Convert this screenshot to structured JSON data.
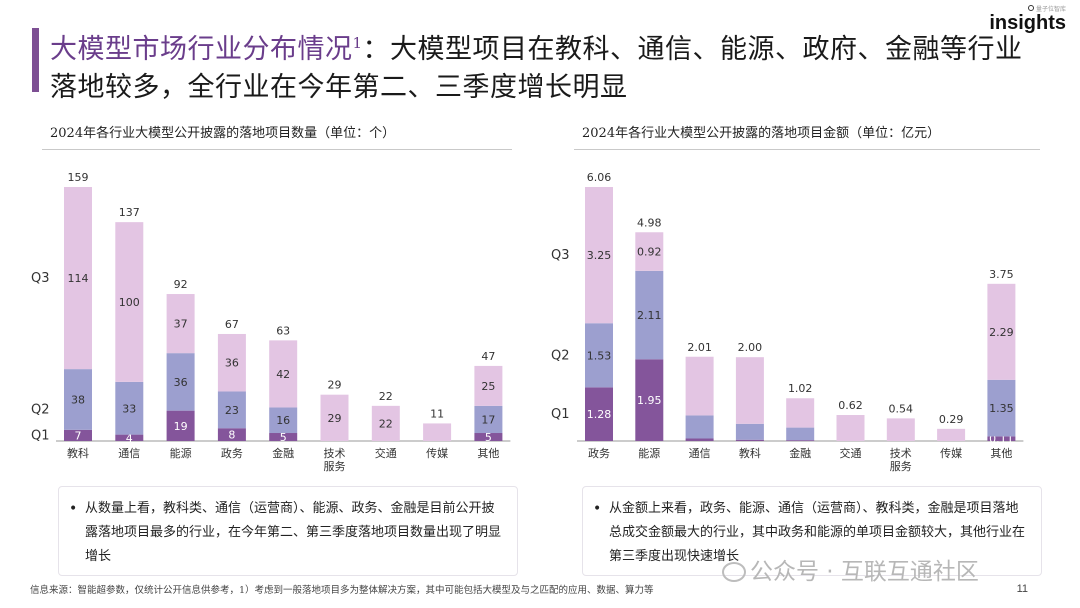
{
  "header": {
    "title_highlight": "大模型市场行业分布情况",
    "title_sup": "1",
    "title_rest": "：大模型项目在教科、通信、能源、政府、金融等行业落地较多，全行业在今年第二、三季度增长明显"
  },
  "logo": {
    "small_text": "量子位智库",
    "main_text": "insights"
  },
  "colors": {
    "q1": "#84559b",
    "q2": "#9c9fcf",
    "q3": "#e3c5e3",
    "accent": "#6a3d8b"
  },
  "left_chart": {
    "heading": "2024年各行业大模型公开披露的落地项目数量（单位：个）"
  },
  "right_chart": {
    "heading": "2024年各行业大模型公开披露的落地项目金额（单位：亿元）"
  },
  "chart_data": [
    {
      "type": "bar",
      "stacked": true,
      "title": "2024年各行业大模型公开披露的落地项目数量（单位：个）",
      "categories": [
        "教科",
        "通信",
        "能源",
        "政务",
        "金融",
        "技术服务",
        "交通",
        "传媒",
        "其他"
      ],
      "totals": [
        "159",
        "137",
        "92",
        "67",
        "63",
        "29",
        "22",
        "11",
        "47"
      ],
      "series": [
        {
          "name": "Q1",
          "values": [
            7,
            4,
            19,
            8,
            5,
            0,
            0,
            0,
            5
          ],
          "labels": [
            "7",
            "4",
            "19",
            "8",
            "5",
            "",
            "",
            "",
            "5"
          ]
        },
        {
          "name": "Q2",
          "values": [
            38,
            33,
            36,
            23,
            16,
            0,
            0,
            0,
            17
          ],
          "labels": [
            "38",
            "33",
            "36",
            "23",
            "16",
            "",
            "",
            "",
            "17"
          ]
        },
        {
          "name": "Q3",
          "values": [
            114,
            100,
            37,
            36,
            42,
            29,
            22,
            11,
            25
          ],
          "labels": [
            "114",
            "100",
            "37",
            "36",
            "42",
            "29",
            "22",
            "",
            "25"
          ]
        }
      ],
      "ylim": [
        0,
        159
      ]
    },
    {
      "type": "bar",
      "stacked": true,
      "title": "2024年各行业大模型公开披露的落地项目金额（单位：亿元）",
      "categories": [
        "政务",
        "能源",
        "通信",
        "教科",
        "金融",
        "交通",
        "技术服务",
        "传媒",
        "其他"
      ],
      "totals": [
        "6.06",
        "4.98",
        "2.01",
        "2.00",
        "1.02",
        "0.62",
        "0.54",
        "0.29",
        "3.75"
      ],
      "series": [
        {
          "name": "Q1",
          "values": [
            1.28,
            1.95,
            0.06,
            0.03,
            0.02,
            0,
            0,
            0,
            0.11
          ],
          "labels": [
            "1.28",
            "1.95",
            "",
            "",
            "",
            "",
            "",
            "",
            "0.11"
          ]
        },
        {
          "name": "Q2",
          "values": [
            1.53,
            2.11,
            0.55,
            0.38,
            0.3,
            0,
            0,
            0,
            1.35
          ],
          "labels": [
            "1.53",
            "2.11",
            "",
            "",
            "",
            "",
            "",
            "",
            "1.35"
          ]
        },
        {
          "name": "Q3",
          "values": [
            3.25,
            0.92,
            1.4,
            1.59,
            0.7,
            0.62,
            0.54,
            0.29,
            2.29
          ],
          "labels": [
            "3.25",
            "0.92",
            "",
            "",
            "",
            "",
            "",
            "",
            "2.29"
          ]
        }
      ],
      "ylim": [
        0,
        6.06
      ]
    }
  ],
  "notes": {
    "left": "从数量上看，教科类、通信（运营商）、能源、政务、金融是目前公开披露落地项目最多的行业，在今年第二、第三季度落地项目数量出现了明显增长",
    "right": "从金额上来看，政务、能源、通信（运营商）、教科类，金融是项目落地总成交金额最大的行业，其中政务和能源的单项目金额较大，其他行业在第三季度出现快速增长"
  },
  "footer": {
    "source": "信息来源：智能超参数，仅统计公开信息供参考，1）考虑到一般落地项目多为整体解决方案，其中可能包括大模型及与之匹配的应用、数据、算力等",
    "watermark": "公众号 · 互联互通社区",
    "page": "11"
  }
}
